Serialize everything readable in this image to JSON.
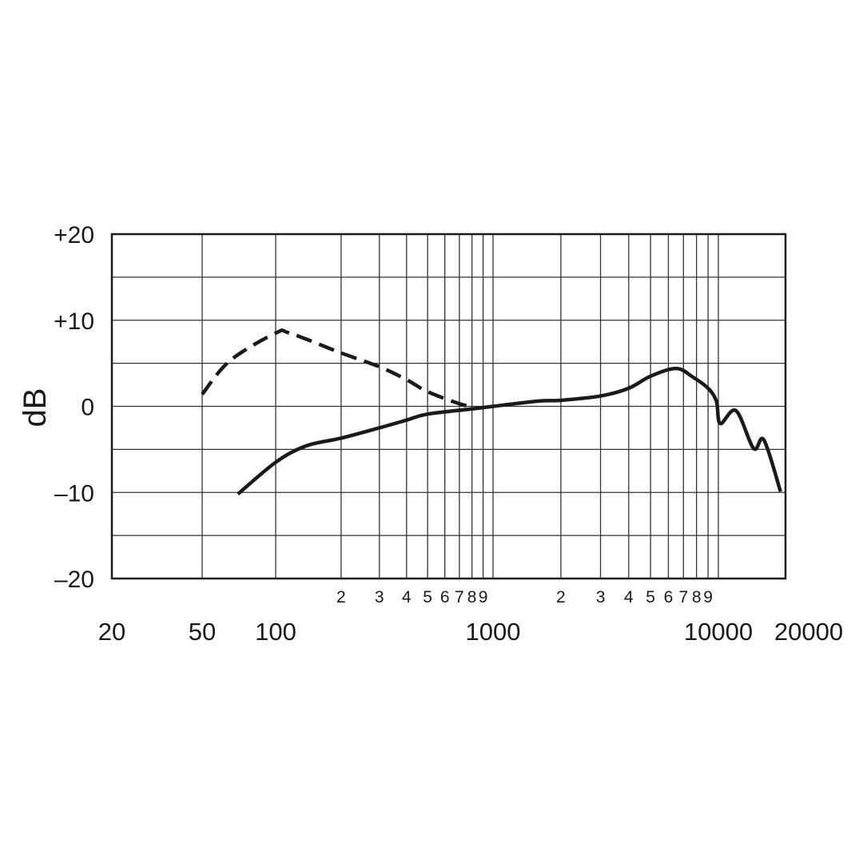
{
  "chart_data": {
    "type": "line",
    "title": "",
    "xlabel": "",
    "ylabel": "dB",
    "x_scale": "log",
    "xlim": [
      20,
      20000
    ],
    "ylim": [
      -20,
      20
    ],
    "grid": true,
    "y_ticks": [
      {
        "value": 20,
        "label": "+20"
      },
      {
        "value": 10,
        "label": "+10"
      },
      {
        "value": 0,
        "label": "0"
      },
      {
        "value": -10,
        "label": "–10"
      },
      {
        "value": -20,
        "label": "–20"
      }
    ],
    "y_gridlines": [
      20,
      15,
      10,
      5,
      0,
      -5,
      -10,
      -15,
      -20
    ],
    "x_major_ticks": [
      {
        "value": 20,
        "label": "20"
      },
      {
        "value": 50,
        "label": "50"
      },
      {
        "value": 100,
        "label": "100"
      },
      {
        "value": 1000,
        "label": "1000"
      },
      {
        "value": 10000,
        "label": "10000"
      },
      {
        "value": 20000,
        "label": "20000"
      }
    ],
    "x_minor_ticks": [
      {
        "value": 200,
        "label": "2"
      },
      {
        "value": 300,
        "label": "3"
      },
      {
        "value": 400,
        "label": "4"
      },
      {
        "value": 500,
        "label": "5"
      },
      {
        "value": 600,
        "label": "6"
      },
      {
        "value": 700,
        "label": "7"
      },
      {
        "value": 800,
        "label": "8"
      },
      {
        "value": 900,
        "label": "9"
      },
      {
        "value": 2000,
        "label": "2"
      },
      {
        "value": 3000,
        "label": "3"
      },
      {
        "value": 4000,
        "label": "4"
      },
      {
        "value": 5000,
        "label": "5"
      },
      {
        "value": 6000,
        "label": "6"
      },
      {
        "value": 7000,
        "label": "7"
      },
      {
        "value": 8000,
        "label": "8"
      },
      {
        "value": 9000,
        "label": "9"
      }
    ],
    "series": [
      {
        "style": "dashed",
        "color": "#1a1a1a",
        "x": [
          50,
          65,
          100,
          116,
          200,
          300,
          400,
          500,
          700,
          800
        ],
        "y": [
          1.4,
          5.3,
          8.5,
          8.5,
          6.2,
          4.6,
          3.1,
          1.7,
          0.3,
          0.0
        ]
      },
      {
        "style": "solid",
        "color": "#1a1a1a",
        "x": [
          70,
          100,
          138,
          200,
          300,
          400,
          500,
          800,
          1000,
          1580,
          2000,
          3000,
          4000,
          5000,
          6500,
          7700,
          9000,
          9800,
          10200,
          12000,
          14400,
          16000,
          19000
        ],
        "y": [
          -10.2,
          -6.5,
          -4.6,
          -3.7,
          -2.5,
          -1.6,
          -0.9,
          -0.3,
          0.0,
          0.6,
          0.7,
          1.2,
          2.1,
          3.5,
          4.4,
          3.4,
          2.1,
          0.6,
          -2.0,
          -0.5,
          -4.9,
          -3.9,
          -9.9
        ]
      }
    ]
  }
}
